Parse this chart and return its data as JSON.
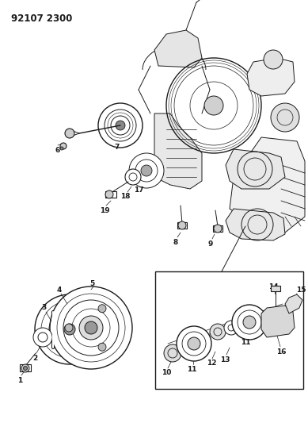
{
  "title_code": "92107 2300",
  "bg_color": "#ffffff",
  "line_color": "#1a1a1a",
  "fig_width": 3.89,
  "fig_height": 5.33,
  "dpi": 100,
  "title_fontsize": 8.5,
  "label_fontsize": 6.5
}
